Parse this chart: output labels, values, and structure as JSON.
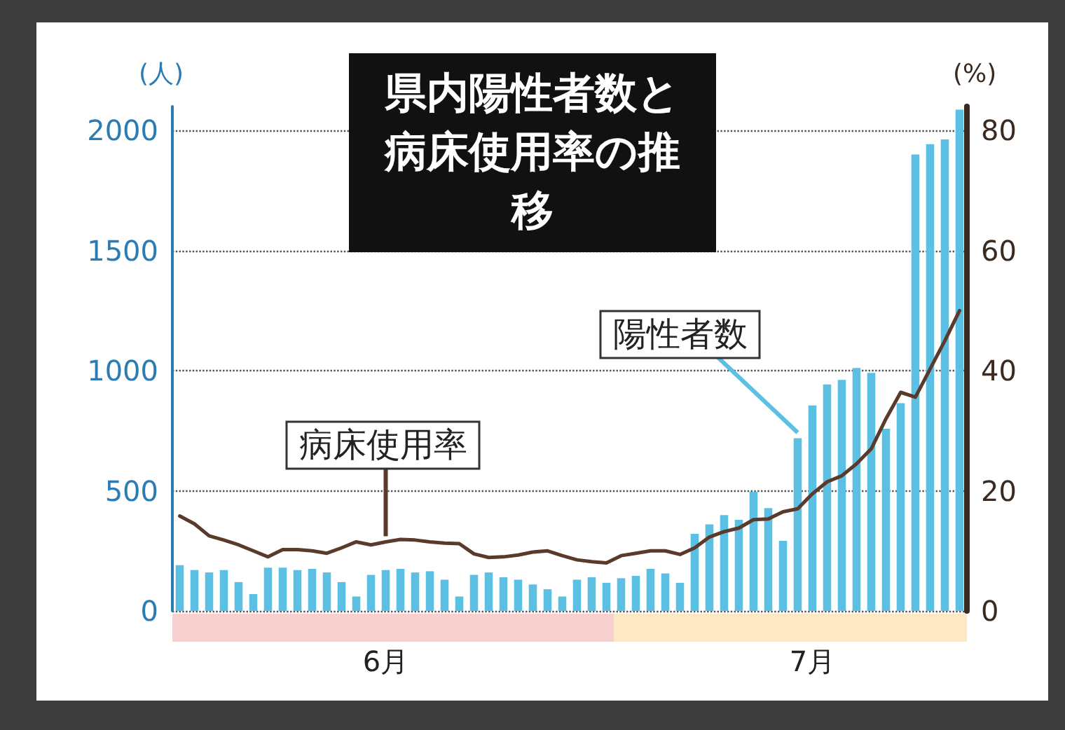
{
  "chart_data": {
    "type": "bar",
    "title": "県内陽性者数と病床使用率の推移",
    "categories": [
      null,
      null,
      null,
      null,
      null,
      null,
      null,
      null,
      null,
      null,
      null,
      null,
      null,
      null,
      "6月",
      null,
      null,
      null,
      null,
      null,
      null,
      null,
      null,
      null,
      null,
      null,
      null,
      null,
      null,
      null,
      null,
      null,
      null,
      null,
      null,
      null,
      null,
      null,
      null,
      null,
      null,
      null,
      null,
      "7月",
      null,
      null,
      null,
      null,
      null,
      null,
      null,
      null,
      null,
      null
    ],
    "ylabel": "(人)",
    "y2label": "(%)",
    "series": [
      {
        "name": "陽性者数",
        "color": "#5bc0e3",
        "values": [
          190,
          170,
          160,
          170,
          120,
          70,
          180,
          180,
          170,
          175,
          160,
          120,
          60,
          150,
          170,
          175,
          160,
          165,
          130,
          60,
          150,
          160,
          140,
          130,
          110,
          90,
          60,
          130,
          140,
          117,
          136,
          146,
          175,
          156,
          117,
          321,
          360,
          399,
          379,
          496,
          428,
          292,
          719,
          855,
          943,
          962,
          1011,
          991,
          758,
          865,
          1900,
          1943,
          1963,
          2087
        ]
      },
      {
        "name": "病床使用率",
        "type": "line",
        "axis": "y2",
        "color": "#5a3a2a",
        "values": [
          15.8,
          14.5,
          12.5,
          11.8,
          11,
          10,
          9,
          10.2,
          10.2,
          10,
          9.6,
          10.5,
          11.5,
          11,
          11.5,
          11.9,
          11.8,
          11.5,
          11.3,
          11.2,
          9.5,
          8.9,
          9,
          9.3,
          9.8,
          10,
          9.2,
          8.5,
          8.2,
          8,
          9.2,
          9.6,
          10,
          10,
          9.4,
          10.5,
          12.3,
          13.2,
          13.8,
          15.2,
          15.3,
          16.5,
          17,
          19.5,
          21.5,
          22.5,
          24.5,
          27,
          32,
          36.4,
          35.6,
          40.3,
          45,
          50
        ]
      }
    ],
    "ylim": [
      0,
      2100
    ],
    "yticks": [
      0,
      500,
      1000,
      1500,
      2000
    ],
    "y2lim": [
      0,
      84
    ],
    "y2ticks": [
      0,
      20,
      40,
      60,
      80
    ],
    "grid": "y",
    "legend": false,
    "marker": "none",
    "line_style": "solid"
  }
}
